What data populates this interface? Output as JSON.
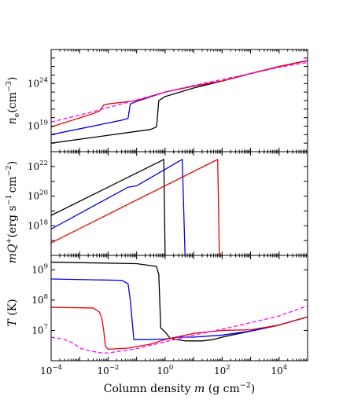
{
  "chart_data": {
    "type": "line",
    "shared_x": {
      "label": "Column density m (g cm⁻²)",
      "label_parts": [
        "Column density ",
        "m",
        " (g cm",
        "−2",
        ")"
      ],
      "scale": "log",
      "range": [
        0.0001,
        100000
      ],
      "ticks": [
        {
          "base": "10",
          "exp": "−4",
          "value": 0.0001
        },
        {
          "base": "10",
          "exp": "−2",
          "value": 0.01
        },
        {
          "base": "10",
          "exp": "0",
          "value": 1
        },
        {
          "base": "10",
          "exp": "2",
          "value": 100
        },
        {
          "base": "10",
          "exp": "4",
          "value": 10000
        }
      ]
    },
    "series_styles": [
      {
        "color": "#000000",
        "dash": "solid"
      },
      {
        "color": "#0000ee",
        "dash": "solid"
      },
      {
        "color": "#ee0000",
        "dash": "solid"
      },
      {
        "color": "#ff00ff",
        "dash": "dashed"
      }
    ],
    "panels": [
      {
        "ylabel": "n_e (cm⁻³)",
        "ylabel_parts": [
          "n",
          "e",
          "(cm",
          "−3",
          ")"
        ],
        "yscale": "log",
        "ylim": [
          1e+16,
          1e+28
        ],
        "yticks": [
          {
            "base": "10",
            "exp": "19",
            "value": 1e+19
          },
          {
            "base": "10",
            "exp": "24",
            "value": 1e+24
          }
        ],
        "series": [
          {
            "x": [
              0.0001,
              0.3,
              0.5,
              0.6,
              1,
              10,
              100,
              1000,
              10000,
              100000
            ],
            "y": [
              1e+17,
              4e+18,
              8e+18,
              1e+22,
              3e+22,
              3e+23,
              2e+24,
              1.5e+25,
              1e+26,
              5e+26
            ]
          },
          {
            "x": [
              0.0001,
              0.03,
              0.05,
              0.06,
              0.1,
              1,
              10,
              100,
              1000,
              10000,
              100000
            ],
            "y": [
              1e+18,
              5e+19,
              8e+19,
              4e+21,
              8e+21,
              1e+23,
              5e+23,
              2e+24,
              1.5e+25,
              1e+26,
              5e+26
            ]
          },
          {
            "x": [
              0.0001,
              0.003,
              0.005,
              0.007,
              0.01,
              0.1,
              1,
              10,
              100,
              1000,
              10000,
              100000
            ],
            "y": [
              8e+18,
              3e+20,
              6e+20,
              3e+21,
              4e+21,
              1e+22,
              1e+23,
              5e+23,
              2e+24,
              1.5e+25,
              1e+26,
              5e+26
            ]
          },
          {
            "x": [
              0.0001,
              0.001,
              0.01,
              0.1,
              1,
              10,
              100,
              1000,
              10000,
              100000
            ],
            "y": [
              3e+19,
              2e+20,
              1.5e+21,
              1.2e+22,
              1e+23,
              6e+23,
              3e+24,
              1.5e+25,
              8e+25,
              3e+26
            ]
          }
        ]
      },
      {
        "ylabel": "mQ⁺ (erg s⁻¹ cm⁻²)",
        "ylabel_parts": [
          "mQ",
          "+",
          "(erg s",
          "−1",
          "cm",
          "−2",
          ")"
        ],
        "yscale": "log",
        "ylim": [
          1e+16,
          1e+23
        ],
        "yticks": [
          {
            "base": "10",
            "exp": "18",
            "value": 1e+18
          },
          {
            "base": "10",
            "exp": "20",
            "value": 1e+20
          },
          {
            "base": "10",
            "exp": "22",
            "value": 1e+22
          }
        ],
        "series": [
          {
            "x": [
              0.0001,
              0.6,
              0.9,
              1.0
            ],
            "y": [
              5e+18,
              2e+22,
              3e+22,
              1e+16
            ]
          },
          {
            "x": [
              0.0001,
              0.05,
              0.1,
              4,
              5
            ],
            "y": [
              6e+17,
              4e+20,
              5e+20,
              3e+22,
              1e+16
            ]
          },
          {
            "x": [
              0.0001,
              70,
              80
            ],
            "y": [
              7e+16,
              3e+22,
              1e+16
            ]
          }
        ]
      },
      {
        "ylabel": "T (K)",
        "ylabel_parts": [
          "T",
          " (K)"
        ],
        "yscale": "log",
        "ylim": [
          1000000,
          3000000000
        ],
        "yticks": [
          {
            "base": "10",
            "exp": "7",
            "value": 10000000
          },
          {
            "base": "10",
            "exp": "8",
            "value": 100000000
          },
          {
            "base": "10",
            "exp": "9",
            "value": 1000000000
          }
        ],
        "series": [
          {
            "x": [
              0.0001,
              0.1,
              0.5,
              0.6,
              0.7,
              1,
              1.5,
              5,
              20,
              50,
              100,
              1000,
              10000,
              100000
            ],
            "y": [
              1800000000,
              1600000000,
              1300000000,
              700000000,
              12000000,
              9000000,
              5500000,
              4500000,
              4500000,
              5000000,
              6000000,
              9500000,
              15000000,
              28000000
            ]
          },
          {
            "x": [
              0.0001,
              0.03,
              0.05,
              0.06,
              0.08,
              0.3,
              1,
              3,
              10,
              100,
              1000,
              10000,
              100000
            ],
            "y": [
              500000000,
              450000000,
              350000000,
              100000000,
              5000000,
              5000000,
              5200000,
              6000000,
              6000000,
              7000000,
              9500000,
              15000000,
              28000000
            ]
          },
          {
            "x": [
              0.0001,
              0.003,
              0.005,
              0.006,
              0.007,
              0.008,
              0.01,
              0.05,
              0.3,
              1,
              10,
              100,
              1000,
              10000,
              100000
            ],
            "y": [
              58000000,
              55000000,
              40000000,
              25000000,
              10000000,
              3000000,
              2400000,
              2600000,
              3500000,
              5000000,
              8000000,
              10000000,
              10500000,
              15000000,
              28000000
            ]
          },
          {
            "x": [
              0.0001,
              0.0003,
              0.0006,
              0.001,
              0.003,
              0.006,
              0.01,
              0.1,
              1,
              10,
              100,
              1000,
              10000,
              100000
            ],
            "y": [
              6000000,
              5000000,
              3800000,
              2600000,
              2000000,
              1800000,
              1800000,
              2500000,
              4200000,
              7000000,
              11000000,
              18000000,
              30000000,
              65000000
            ]
          }
        ]
      }
    ]
  }
}
